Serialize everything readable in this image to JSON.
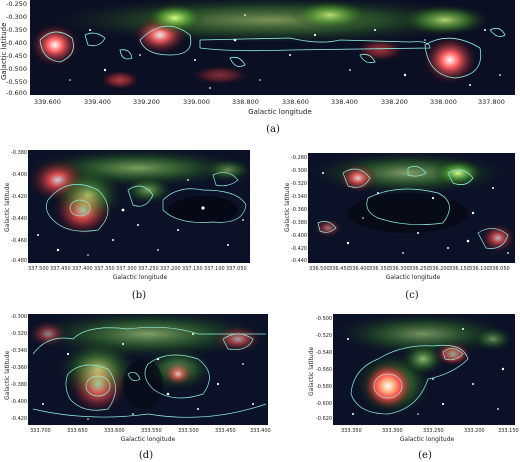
{
  "figure": {
    "panels": [
      {
        "id": "a",
        "caption": "(a)",
        "xlabel": "Galactic longitude",
        "ylabel": "Galactic latitude",
        "xticks": [
          "339.600",
          "339.400",
          "339.200",
          "339.000",
          "338.800",
          "338.600",
          "338.400",
          "338.200",
          "338.000",
          "337.800"
        ],
        "yticks": [
          "-0.250",
          "-0.300",
          "-0.350",
          "-0.400",
          "-0.450",
          "-0.500",
          "-0.550",
          "-0.600"
        ]
      },
      {
        "id": "b",
        "caption": "(b)",
        "xlabel": "Galactic longitude",
        "ylabel": "Galactic latitude",
        "xticks": [
          "337.500",
          "337.450",
          "337.400",
          "337.350",
          "337.300",
          "337.250",
          "337.200",
          "337.150",
          "337.100",
          "337.050"
        ],
        "yticks": [
          "-0.380",
          "-0.400",
          "-0.420",
          "-0.440",
          "-0.460",
          "-0.480"
        ]
      },
      {
        "id": "c",
        "caption": "(c)",
        "xlabel": "Galactic longitude",
        "ylabel": "Galactic latitude",
        "xticks": [
          "336.500",
          "336.450",
          "336.400",
          "336.350",
          "336.300",
          "336.250",
          "336.200",
          "336.150",
          "336.100",
          "336.050"
        ],
        "yticks": [
          "-0.280",
          "-0.300",
          "-0.320",
          "-0.340",
          "-0.360",
          "-0.380",
          "-0.400",
          "-0.420",
          "-0.440"
        ]
      },
      {
        "id": "d",
        "caption": "(d)",
        "xlabel": "Galactic longitude",
        "ylabel": "Galactic latitude",
        "xticks": [
          "333.700",
          "333.650",
          "333.600",
          "333.550",
          "333.500",
          "333.450",
          "333.400"
        ],
        "yticks": [
          "-0.300",
          "-0.320",
          "-0.340",
          "-0.360",
          "-0.380",
          "-0.400",
          "-0.420"
        ]
      },
      {
        "id": "e",
        "caption": "(e)",
        "xlabel": "Galactic longitude",
        "ylabel": "Galactic latitude",
        "xticks": [
          "333.350",
          "333.300",
          "333.250",
          "333.200",
          "333.150"
        ],
        "yticks": [
          "-0.500",
          "-0.520",
          "-0.540",
          "-0.560",
          "-0.580",
          "-0.600",
          "-0.620"
        ]
      }
    ]
  }
}
